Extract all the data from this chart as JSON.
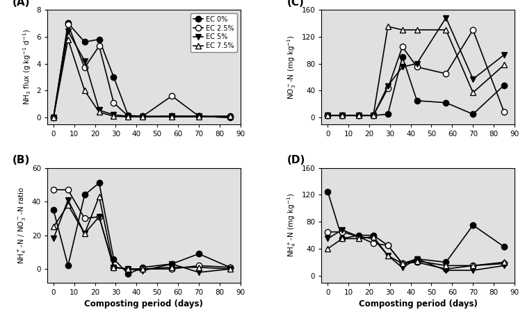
{
  "A": {
    "title": "(A)",
    "ylabel": "NH$_3$ flux (g kg$^{-1}$ d$^{-1}$)",
    "ylim": [
      -0.5,
      8
    ],
    "yticks": [
      0,
      2,
      4,
      6,
      8
    ],
    "series": {
      "EC 0%": {
        "x": [
          0,
          7,
          15,
          22,
          29,
          36,
          43,
          57,
          70,
          85
        ],
        "y": [
          0.0,
          7.0,
          5.6,
          5.8,
          3.0,
          0.15,
          0.1,
          0.1,
          0.1,
          0.0
        ],
        "marker": "o",
        "fill": true
      },
      "EC 2.5%": {
        "x": [
          0,
          7,
          15,
          22,
          29,
          36,
          43,
          57,
          70,
          85
        ],
        "y": [
          0.0,
          6.9,
          3.7,
          5.3,
          1.1,
          0.1,
          0.1,
          1.6,
          0.1,
          0.1
        ],
        "marker": "o",
        "fill": false
      },
      "EC 5%": {
        "x": [
          0,
          7,
          15,
          22,
          29,
          36,
          43,
          57,
          70,
          85
        ],
        "y": [
          0.0,
          6.4,
          4.2,
          0.55,
          0.2,
          0.1,
          0.05,
          0.1,
          0.1,
          0.0
        ],
        "marker": "v",
        "fill": true
      },
      "EC 7.5%": {
        "x": [
          0,
          7,
          15,
          22,
          29,
          36,
          43,
          57,
          70,
          85
        ],
        "y": [
          0.0,
          5.8,
          2.0,
          0.4,
          0.1,
          0.05,
          0.05,
          0.05,
          0.05,
          0.1
        ],
        "marker": "^",
        "fill": false
      }
    },
    "legend": true
  },
  "B": {
    "title": "(B)",
    "ylabel": "NH$_4^+$-N / NO$_3^-$-N ratio",
    "ylim": [
      -8,
      60
    ],
    "yticks": [
      0,
      20,
      40,
      60
    ],
    "xlabel": "Composting period (days)",
    "series": {
      "EC 0%": {
        "x": [
          0,
          7,
          15,
          22,
          29,
          36,
          43,
          57,
          70,
          85
        ],
        "y": [
          35,
          2,
          44,
          51,
          6,
          -3,
          1,
          3,
          9,
          1
        ],
        "marker": "o",
        "fill": true
      },
      "EC 2.5%": {
        "x": [
          0,
          7,
          15,
          22,
          29,
          36,
          43,
          57,
          70,
          85
        ],
        "y": [
          47,
          47,
          30,
          31,
          1,
          0,
          0,
          0,
          2,
          1
        ],
        "marker": "o",
        "fill": false
      },
      "EC 5%": {
        "x": [
          0,
          7,
          15,
          22,
          29,
          36,
          43,
          57,
          70,
          85
        ],
        "y": [
          18,
          41,
          21,
          31,
          1,
          0,
          -1,
          3,
          -2,
          0
        ],
        "marker": "v",
        "fill": true
      },
      "EC 7.5%": {
        "x": [
          0,
          7,
          15,
          22,
          29,
          36,
          43,
          57,
          70,
          85
        ],
        "y": [
          25,
          38,
          21,
          43,
          1,
          0,
          0,
          1,
          1,
          0
        ],
        "marker": "^",
        "fill": false
      }
    }
  },
  "C": {
    "title": "(C)",
    "ylabel": "NO$_3^-$-N (mg kg$^{-1}$)",
    "ylim": [
      -10,
      160
    ],
    "yticks": [
      0,
      40,
      80,
      120,
      160
    ],
    "series": {
      "EC 0%": {
        "x": [
          0,
          7,
          15,
          22,
          29,
          36,
          43,
          57,
          70,
          85
        ],
        "y": [
          3,
          3,
          3,
          3,
          5,
          90,
          25,
          22,
          5,
          48
        ],
        "marker": "o",
        "fill": true
      },
      "EC 2.5%": {
        "x": [
          0,
          7,
          15,
          22,
          29,
          36,
          43,
          57,
          70,
          85
        ],
        "y": [
          3,
          3,
          3,
          3,
          43,
          105,
          75,
          65,
          130,
          8
        ],
        "marker": "o",
        "fill": false
      },
      "EC 5%": {
        "x": [
          0,
          7,
          15,
          22,
          29,
          36,
          43,
          57,
          70,
          85
        ],
        "y": [
          3,
          3,
          3,
          3,
          47,
          75,
          80,
          148,
          57,
          93
        ],
        "marker": "v",
        "fill": true
      },
      "EC 7.5%": {
        "x": [
          0,
          7,
          15,
          22,
          29,
          36,
          43,
          57,
          70,
          85
        ],
        "y": [
          3,
          3,
          3,
          3,
          135,
          130,
          130,
          130,
          37,
          78
        ],
        "marker": "^",
        "fill": false
      }
    }
  },
  "D": {
    "title": "(D)",
    "ylabel": "NH$_4^+$-N (mg kg$^{-1}$)",
    "ylim": [
      -10,
      160
    ],
    "yticks": [
      0,
      40,
      80,
      120,
      160
    ],
    "xlabel": "Composting period (days)",
    "series": {
      "EC 0%": {
        "x": [
          0,
          7,
          15,
          22,
          29,
          36,
          43,
          57,
          70,
          85
        ],
        "y": [
          125,
          55,
          60,
          60,
          45,
          18,
          25,
          20,
          75,
          43
        ],
        "marker": "o",
        "fill": true
      },
      "EC 2.5%": {
        "x": [
          0,
          7,
          15,
          22,
          29,
          36,
          43,
          57,
          70,
          85
        ],
        "y": [
          65,
          65,
          58,
          48,
          45,
          18,
          20,
          10,
          15,
          18
        ],
        "marker": "o",
        "fill": false
      },
      "EC 5%": {
        "x": [
          0,
          7,
          15,
          22,
          29,
          36,
          43,
          57,
          70,
          85
        ],
        "y": [
          55,
          68,
          58,
          55,
          30,
          12,
          25,
          8,
          8,
          15
        ],
        "marker": "v",
        "fill": true
      },
      "EC 7.5%": {
        "x": [
          0,
          7,
          15,
          22,
          29,
          36,
          43,
          57,
          70,
          85
        ],
        "y": [
          40,
          55,
          55,
          58,
          30,
          18,
          22,
          15,
          15,
          20
        ],
        "marker": "^",
        "fill": false
      }
    }
  },
  "xlim": [
    -3,
    90
  ],
  "xticks": [
    0,
    10,
    20,
    30,
    40,
    50,
    60,
    70,
    80,
    90
  ],
  "markersize": 6,
  "linewidth": 1.2
}
